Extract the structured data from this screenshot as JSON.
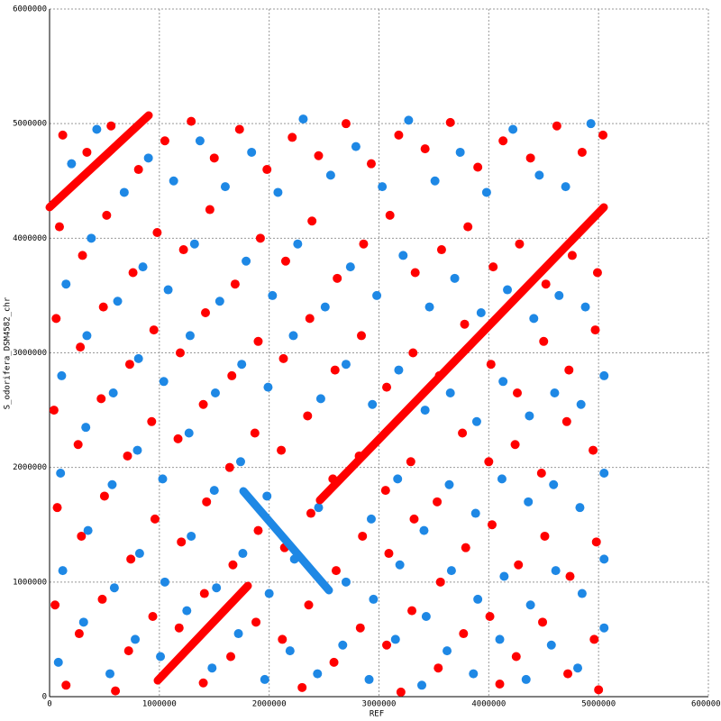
{
  "chart_data": {
    "type": "scatter",
    "xlabel": "REF",
    "ylabel": "S_odorifera_DSM4582_chr",
    "xlim": [
      0,
      6000000
    ],
    "ylim": [
      0,
      6000000
    ],
    "xticks": [
      0,
      1000000,
      2000000,
      3000000,
      4000000,
      5000000,
      6000000
    ],
    "yticks": [
      0,
      1000000,
      2000000,
      3000000,
      4000000,
      5000000,
      6000000
    ],
    "grid": true,
    "series": [
      {
        "color": "#ff0000",
        "x": [
          120000,
          340000,
          560000,
          810000,
          1050000,
          1290000,
          1500000,
          1730000,
          1980000,
          2210000,
          2450000,
          2700000,
          2930000,
          3180000,
          3420000,
          3650000,
          3900000,
          4130000,
          4380000,
          4620000,
          4850000,
          5040000,
          90000,
          300000,
          520000,
          760000,
          980000,
          1220000,
          1460000,
          1690000,
          1920000,
          2150000,
          2390000,
          2620000,
          2860000,
          3100000,
          3330000,
          3570000,
          3810000,
          4040000,
          4280000,
          4520000,
          4760000,
          4990000,
          60000,
          280000,
          490000,
          730000,
          950000,
          1190000,
          1420000,
          1660000,
          1900000,
          2130000,
          2370000,
          2600000,
          2840000,
          3070000,
          3310000,
          3550000,
          3780000,
          4020000,
          4260000,
          4500000,
          4730000,
          4970000,
          40000,
          260000,
          470000,
          710000,
          930000,
          1170000,
          1400000,
          1640000,
          1870000,
          2110000,
          2350000,
          2580000,
          2820000,
          3060000,
          3290000,
          3530000,
          3760000,
          4000000,
          4240000,
          4480000,
          4710000,
          4950000,
          70000,
          290000,
          500000,
          740000,
          960000,
          1200000,
          1430000,
          1670000,
          1900000,
          2140000,
          2380000,
          2610000,
          2850000,
          3090000,
          3320000,
          3560000,
          3790000,
          4030000,
          4270000,
          4510000,
          4740000,
          4980000,
          50000,
          270000,
          480000,
          720000,
          940000,
          1180000,
          1410000,
          1650000,
          1880000,
          2120000,
          2360000,
          2590000,
          2830000,
          3070000,
          3300000,
          3540000,
          3770000,
          4010000,
          4250000,
          4490000,
          4720000,
          4960000,
          150000,
          600000,
          1400000,
          2300000,
          3200000,
          4100000,
          5000000
        ],
        "y": [
          4900000,
          4750000,
          4980000,
          4600000,
          4850000,
          5020000,
          4700000,
          4950000,
          4600000,
          4880000,
          4720000,
          5000000,
          4650000,
          4900000,
          4780000,
          5010000,
          4620000,
          4850000,
          4700000,
          4980000,
          4750000,
          4900000,
          4100000,
          3850000,
          4200000,
          3700000,
          4050000,
          3900000,
          4250000,
          3600000,
          4000000,
          3800000,
          4150000,
          3650000,
          3950000,
          4200000,
          3700000,
          3900000,
          4100000,
          3750000,
          3950000,
          3600000,
          3850000,
          3700000,
          3300000,
          3050000,
          3400000,
          2900000,
          3200000,
          3000000,
          3350000,
          2800000,
          3100000,
          2950000,
          3300000,
          2850000,
          3150000,
          2700000,
          3000000,
          2800000,
          3250000,
          2900000,
          2650000,
          3100000,
          2850000,
          3200000,
          2500000,
          2200000,
          2600000,
          2100000,
          2400000,
          2250000,
          2550000,
          2000000,
          2300000,
          2150000,
          2450000,
          1900000,
          2100000,
          1800000,
          2050000,
          1700000,
          2300000,
          2050000,
          2200000,
          1950000,
          2400000,
          2150000,
          1650000,
          1400000,
          1750000,
          1200000,
          1550000,
          1350000,
          1700000,
          1150000,
          1450000,
          1300000,
          1600000,
          1100000,
          1400000,
          1250000,
          1550000,
          1000000,
          1300000,
          1500000,
          1150000,
          1400000,
          1050000,
          1350000,
          800000,
          550000,
          850000,
          400000,
          700000,
          600000,
          900000,
          350000,
          650000,
          500000,
          800000,
          300000,
          600000,
          450000,
          750000,
          250000,
          550000,
          700000,
          350000,
          650000,
          200000,
          500000,
          100000,
          50000,
          120000,
          80000,
          40000,
          110000,
          60000
        ]
      },
      {
        "color": "#1e88e5",
        "x": [
          200000,
          430000,
          680000,
          900000,
          1130000,
          1370000,
          1600000,
          1840000,
          2080000,
          2310000,
          2560000,
          2790000,
          3030000,
          3270000,
          3510000,
          3740000,
          3980000,
          4220000,
          4460000,
          4700000,
          4930000,
          150000,
          380000,
          620000,
          850000,
          1080000,
          1320000,
          1550000,
          1790000,
          2030000,
          2260000,
          2510000,
          2740000,
          2980000,
          3220000,
          3460000,
          3690000,
          3930000,
          4170000,
          4410000,
          4640000,
          4880000,
          110000,
          340000,
          580000,
          810000,
          1040000,
          1280000,
          1510000,
          1750000,
          1990000,
          2220000,
          2470000,
          2700000,
          2940000,
          3180000,
          3420000,
          3650000,
          3890000,
          4130000,
          4370000,
          4600000,
          4840000,
          5050000,
          100000,
          330000,
          570000,
          800000,
          1030000,
          1270000,
          1500000,
          1740000,
          1980000,
          2450000,
          2930000,
          3170000,
          3410000,
          3640000,
          3880000,
          4120000,
          4360000,
          4590000,
          4830000,
          5050000,
          120000,
          350000,
          590000,
          820000,
          1050000,
          1290000,
          1520000,
          1760000,
          2000000,
          2230000,
          2700000,
          2950000,
          3190000,
          3430000,
          3660000,
          3900000,
          4140000,
          4380000,
          4610000,
          4850000,
          5050000,
          80000,
          310000,
          550000,
          780000,
          1010000,
          1250000,
          1480000,
          1720000,
          1960000,
          2190000,
          2440000,
          2670000,
          2910000,
          3150000,
          3390000,
          3620000,
          3860000,
          4100000,
          4340000,
          4570000,
          4810000,
          5050000
        ],
        "y": [
          4650000,
          4950000,
          4400000,
          4700000,
          4500000,
          4850000,
          4450000,
          4750000,
          4400000,
          5040000,
          4550000,
          4800000,
          4450000,
          5030000,
          4500000,
          4750000,
          4400000,
          4950000,
          4550000,
          4450000,
          5000000,
          3600000,
          4000000,
          3450000,
          3750000,
          3550000,
          3950000,
          3450000,
          3800000,
          3500000,
          3950000,
          3400000,
          3750000,
          3500000,
          3850000,
          3400000,
          3650000,
          3350000,
          3550000,
          3300000,
          3500000,
          3400000,
          2800000,
          3150000,
          2650000,
          2950000,
          2750000,
          3150000,
          2650000,
          2900000,
          2700000,
          3150000,
          2600000,
          2900000,
          2550000,
          2850000,
          2500000,
          2650000,
          2400000,
          2750000,
          2450000,
          2650000,
          2550000,
          2800000,
          1950000,
          2350000,
          1850000,
          2150000,
          1900000,
          2300000,
          1800000,
          2050000,
          1750000,
          1650000,
          1550000,
          1900000,
          1450000,
          1850000,
          1600000,
          1900000,
          1700000,
          1850000,
          1650000,
          1950000,
          1100000,
          1450000,
          950000,
          1250000,
          1000000,
          1400000,
          950000,
          1250000,
          900000,
          1200000,
          1000000,
          850000,
          1150000,
          700000,
          1100000,
          850000,
          1050000,
          800000,
          1100000,
          900000,
          1200000,
          300000,
          650000,
          200000,
          500000,
          350000,
          750000,
          250000,
          550000,
          150000,
          400000,
          200000,
          450000,
          150000,
          500000,
          100000,
          400000,
          200000,
          500000,
          150000,
          450000,
          250000,
          600000
        ]
      }
    ],
    "segments": [
      {
        "color": "#ff0000",
        "x": [
          985000,
          1806000
        ],
        "y": [
          141000,
          967000
        ]
      },
      {
        "color": "#ff0000",
        "x": [
          2462000,
          5048000
        ],
        "y": [
          1714000,
          4270000
        ]
      },
      {
        "color": "#ff0000",
        "x": [
          0,
          903000
        ],
        "y": [
          4270000,
          5072000
        ]
      },
      {
        "color": "#1e88e5",
        "x": [
          1765000,
          2544000
        ],
        "y": [
          1793000,
          928000
        ]
      }
    ]
  }
}
